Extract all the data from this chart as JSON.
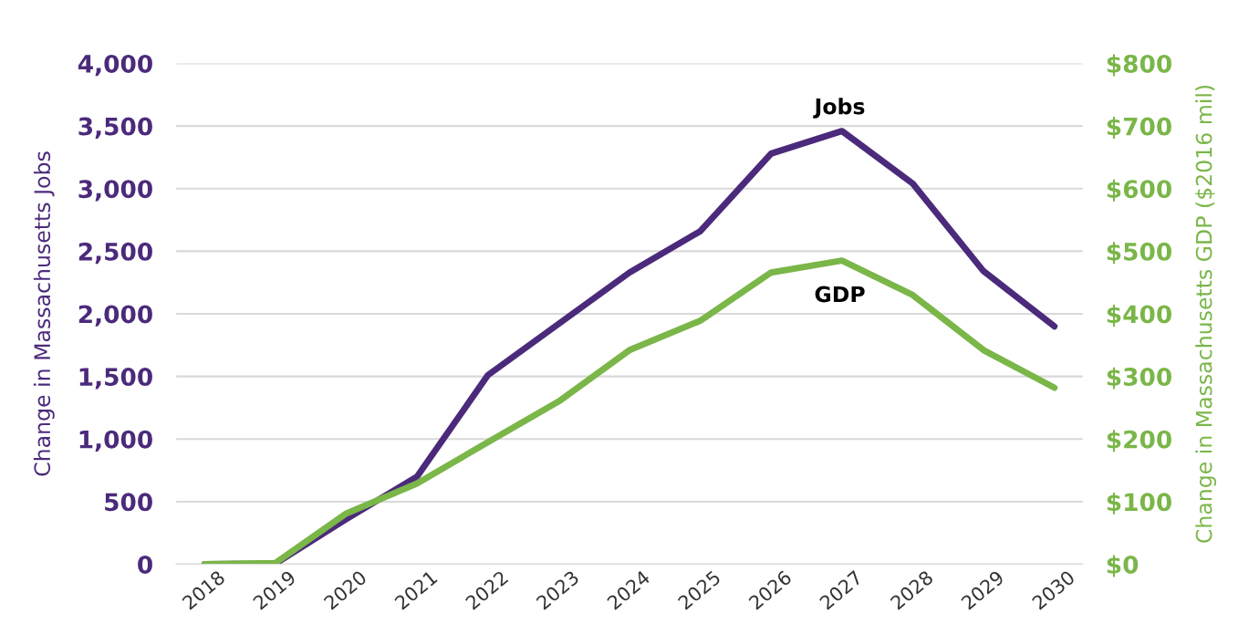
{
  "chart_data": {
    "type": "line",
    "ylabel": "Change in Massachusetts Jobs",
    "y2label": "Change in Massachusetts GDP ($2016 mil)",
    "categories": [
      "2018",
      "2019",
      "2020",
      "2021",
      "2022",
      "2023",
      "2024",
      "2025",
      "2026",
      "2027",
      "2028",
      "2029",
      "2030"
    ],
    "series": [
      {
        "name": "Jobs",
        "color": "#4b2a7b",
        "values": [
          0,
          5,
          360,
          700,
          1510,
          1920,
          2330,
          2660,
          3280,
          3460,
          3040,
          2340,
          1900
        ]
      },
      {
        "name": "GDP",
        "color": "#7ab648",
        "axis": "y2",
        "values": [
          0,
          2,
          81,
          129,
          195,
          260,
          342,
          389,
          466,
          485,
          430,
          342,
          282
        ]
      }
    ],
    "ylim": [
      0,
      4000
    ],
    "yticks": [
      {
        "value": 0,
        "label": "0"
      },
      {
        "value": 500,
        "label": "500"
      },
      {
        "value": 1000,
        "label": "1,000"
      },
      {
        "value": 1500,
        "label": "1,500"
      },
      {
        "value": 2000,
        "label": "2,000"
      },
      {
        "value": 2500,
        "label": "2,500"
      },
      {
        "value": 3000,
        "label": "3,000"
      },
      {
        "value": 3500,
        "label": "3,500"
      },
      {
        "value": 4000,
        "label": "4,000"
      }
    ],
    "y2lim": [
      0,
      800
    ],
    "y2ticks": [
      {
        "value": 0,
        "label": "$0"
      },
      {
        "value": 100,
        "label": "$100"
      },
      {
        "value": 200,
        "label": "$200"
      },
      {
        "value": 300,
        "label": "$300"
      },
      {
        "value": 400,
        "label": "$400"
      },
      {
        "value": 500,
        "label": "$500"
      },
      {
        "value": 600,
        "label": "$600"
      },
      {
        "value": 700,
        "label": "$700"
      },
      {
        "value": 800,
        "label": "$800"
      }
    ],
    "grid": "y",
    "marker": "none",
    "line_style": "solid"
  }
}
